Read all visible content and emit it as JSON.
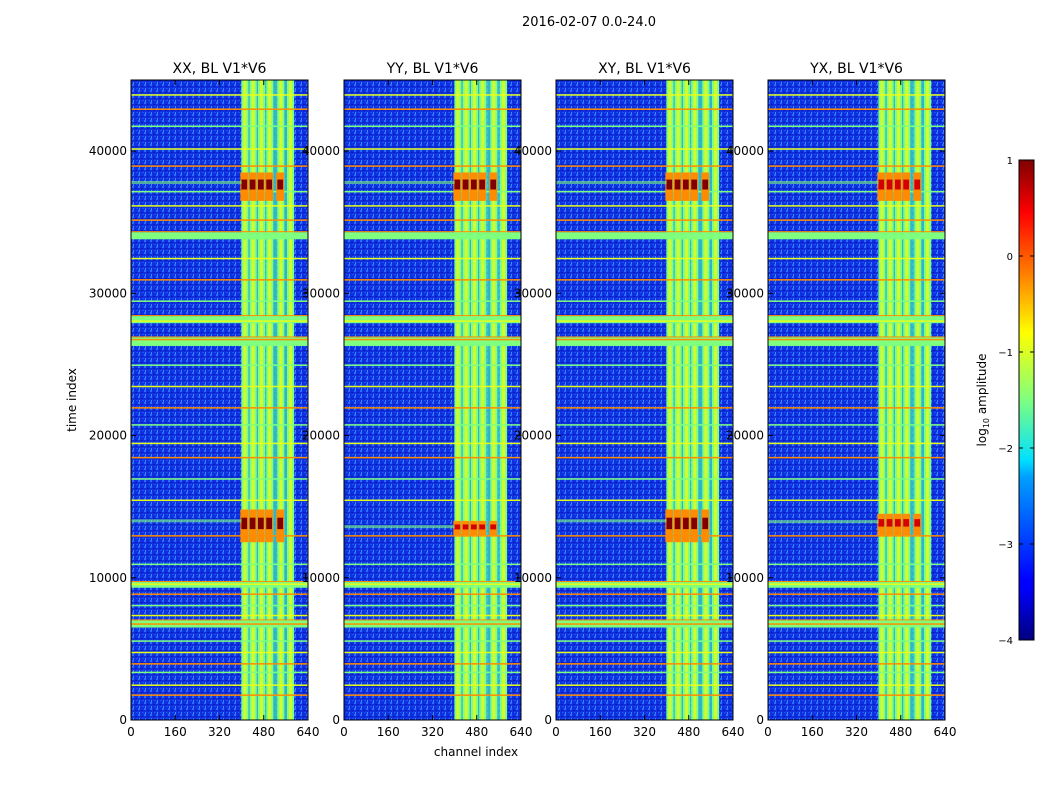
{
  "figure": {
    "suptitle": "2016-02-07 0.0-24.0",
    "xlabel": "channel index",
    "ylabel": "time index"
  },
  "colors": {
    "background": "#00007f",
    "noise": "#1a52ff",
    "rfi_green": "#7fff7f",
    "rfi_yellow": "#e6ff1a",
    "rfi_orange": "#ff8c00",
    "rfi_red": "#d40000",
    "rfi_darkred": "#800000",
    "gray_band": "#8fb0b0"
  },
  "chart_data": [
    {
      "type": "heatmap",
      "title": "XX, BL V1*V6",
      "xlim": [
        0,
        640
      ],
      "ylim": [
        0,
        45000
      ],
      "xticks": [
        0,
        160,
        320,
        480,
        640
      ],
      "yticks": [
        0,
        10000,
        20000,
        30000,
        40000
      ],
      "bright_blocks": [
        [
          12500,
          14800
        ],
        [
          36500,
          38500
        ]
      ]
    },
    {
      "type": "heatmap",
      "title": "YY, BL V1*V6",
      "xlim": [
        0,
        640
      ],
      "ylim": [
        0,
        45000
      ],
      "xticks": [
        0,
        160,
        320,
        480,
        640
      ],
      "yticks": [
        0,
        10000,
        20000,
        30000,
        40000
      ],
      "bright_blocks": [
        [
          13000,
          14000
        ],
        [
          36500,
          38500
        ]
      ]
    },
    {
      "type": "heatmap",
      "title": "XY, BL V1*V6",
      "xlim": [
        0,
        640
      ],
      "ylim": [
        0,
        45000
      ],
      "xticks": [
        0,
        160,
        320,
        480,
        640
      ],
      "yticks": [
        0,
        10000,
        20000,
        30000,
        40000
      ],
      "bright_blocks": [
        [
          12500,
          14800
        ],
        [
          36500,
          38500
        ]
      ]
    },
    {
      "type": "heatmap",
      "title": "YX, BL V1*V6",
      "xlim": [
        0,
        640
      ],
      "ylim": [
        0,
        45000
      ],
      "xticks": [
        0,
        160,
        320,
        480,
        640
      ],
      "yticks": [
        0,
        10000,
        20000,
        30000,
        40000
      ],
      "bright_blocks": [
        [
          13000,
          14500
        ],
        [
          36500,
          38500
        ]
      ]
    }
  ],
  "colorbar": {
    "label_main": "log",
    "label_sub": "10",
    "label_rest": " amplitude",
    "range": [
      -4,
      1
    ],
    "ticks": [
      1,
      0,
      -1,
      -2,
      -3,
      -4
    ],
    "tick_labels": [
      "1",
      "0",
      "−1",
      "−2",
      "−3",
      "−4"
    ]
  },
  "rfi": {
    "vertical_channel_band": [
      405,
      590
    ],
    "vertical_bright_channels": [
      410,
      440,
      470,
      500,
      540,
      575
    ],
    "horizontal_rows": [
      1800,
      2500,
      3400,
      4000,
      4800,
      5600,
      6800,
      7400,
      8100,
      8900,
      9600,
      11000,
      13000,
      15500,
      17000,
      18500,
      19500,
      20800,
      22000,
      23500,
      25000,
      26800,
      28100,
      29500,
      31000,
      32500,
      34000,
      35200,
      36200,
      37200,
      39000,
      40200,
      41800,
      43000,
      44000
    ],
    "thick_bands": [
      [
        6500,
        7000
      ],
      [
        9300,
        9700
      ],
      [
        26300,
        26900
      ],
      [
        27900,
        28400
      ],
      [
        33800,
        34300
      ]
    ]
  }
}
